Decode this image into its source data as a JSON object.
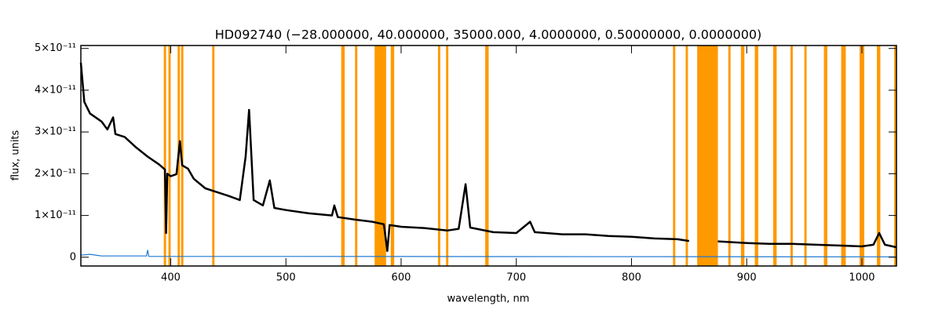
{
  "chart_data": {
    "type": "line",
    "title": "HD092740   (−28.000000, 40.000000, 35000.000, 4.0000000, 0.50000000, 0.0000000)",
    "x_label": "wavelength, nm",
    "y_label": "flux, units",
    "xlim": [
      322,
      1030
    ],
    "ylim": [
      -2.1e-12,
      5.07e-11
    ],
    "xticks": [
      400,
      500,
      600,
      700,
      800,
      900,
      1000
    ],
    "yticks": [
      0,
      {
        "value": 1e-11,
        "label": "1×10⁻¹¹"
      },
      {
        "value": 2e-11,
        "label": "2×10⁻¹¹"
      },
      {
        "value": 3e-11,
        "label": "3×10⁻¹¹"
      },
      {
        "value": 4e-11,
        "label": "4×10⁻¹¹"
      },
      {
        "value": 5e-11,
        "label": "5×10⁻¹¹"
      }
    ],
    "bands": {
      "color": "#ff9900",
      "ranges": [
        [
          394,
          396
        ],
        [
          398,
          400
        ],
        [
          406,
          408
        ],
        [
          409,
          411
        ],
        [
          436,
          438
        ],
        [
          548,
          551
        ],
        [
          560,
          562
        ],
        [
          577,
          587
        ],
        [
          591,
          594
        ],
        [
          632,
          634
        ],
        [
          639,
          641
        ],
        [
          673,
          676
        ],
        [
          836,
          838
        ],
        [
          847,
          849
        ],
        [
          857,
          875
        ],
        [
          884,
          886
        ],
        [
          895,
          898
        ],
        [
          907,
          910
        ],
        [
          923,
          926
        ],
        [
          938,
          940
        ],
        [
          950,
          952
        ],
        [
          967,
          970
        ],
        [
          982,
          986
        ],
        [
          998,
          1002
        ],
        [
          1013,
          1016
        ],
        [
          1028,
          1030
        ]
      ]
    },
    "series": [
      {
        "color": "#000000",
        "x": [
          322,
          325,
          330,
          340,
          345,
          350,
          352,
          360,
          370,
          380,
          390,
          395,
          396,
          397,
          400,
          405,
          408,
          410,
          415,
          420,
          430,
          440,
          450,
          460,
          465,
          468,
          472,
          480,
          486,
          490,
          500,
          520,
          540,
          542,
          545,
          560,
          575,
          585,
          588,
          590,
          600,
          620,
          640,
          650,
          656,
          660,
          680,
          700,
          712,
          716,
          740,
          760,
          780,
          800,
          820,
          840,
          850,
          857,
          875,
          900,
          920,
          940,
          960,
          980,
          1000,
          1010,
          1015,
          1020,
          1030
        ],
        "values": [
          4.66e-11,
          3.72e-11,
          3.44e-11,
          3.25e-11,
          3.06e-11,
          3.35e-11,
          2.95e-11,
          2.88e-11,
          2.63e-11,
          2.41e-11,
          2.22e-11,
          2.1e-11,
          5.8e-12,
          2e-11,
          1.94e-11,
          1.99e-11,
          2.78e-11,
          2.2e-11,
          2.12e-11,
          1.88e-11,
          1.65e-11,
          1.56e-11,
          1.47e-11,
          1.37e-11,
          2.41e-11,
          3.53e-11,
          1.37e-11,
          1.24e-11,
          1.84e-11,
          1.18e-11,
          1.13e-11,
          1.05e-11,
          1e-11,
          1.24e-11,
          9.6e-12,
          9e-12,
          8.5e-12,
          7.9e-12,
          1.5e-12,
          7.7e-12,
          7.3e-12,
          7e-12,
          6.4e-12,
          6.8e-12,
          1.75e-11,
          7.1e-12,
          6e-12,
          5.8e-12,
          8.5e-12,
          6e-12,
          5.5e-12,
          5.5e-12,
          5.1e-12,
          4.9e-12,
          4.5e-12,
          4.3e-12,
          3.9e-12,
          null,
          3.8e-12,
          3.4e-12,
          3.2e-12,
          3.2e-12,
          3e-12,
          2.8e-12,
          2.6e-12,
          3e-12,
          5.8e-12,
          3e-12,
          2.4e-12
        ]
      },
      {
        "color": "#1f78d0",
        "x": [
          322,
          330,
          340,
          379,
          380,
          381,
          490,
          1030
        ],
        "values": [
          5e-13,
          7e-13,
          3e-13,
          3e-13,
          1.7e-12,
          2e-13,
          2e-13,
          1e-13
        ]
      }
    ]
  }
}
